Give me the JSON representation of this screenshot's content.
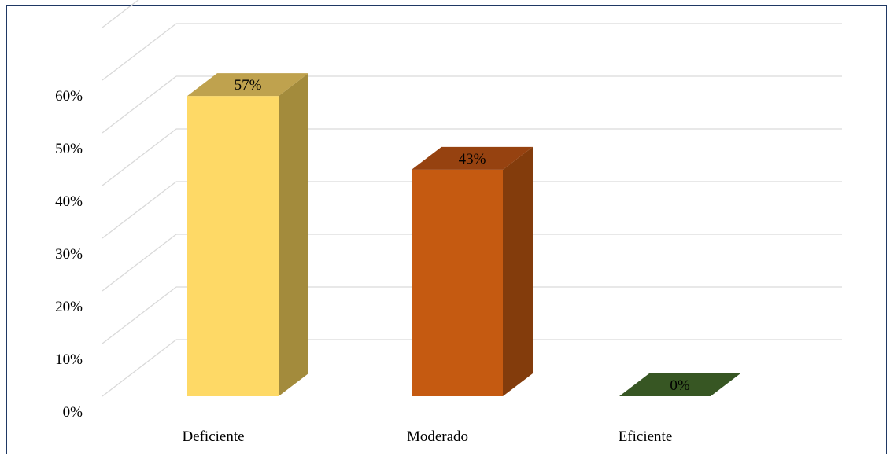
{
  "chart_data": {
    "type": "bar",
    "style": "3d-column",
    "categories": [
      "Deficiente",
      "Moderado",
      "Eficiente"
    ],
    "values": [
      57,
      43,
      0
    ],
    "data_labels": [
      "57%",
      "43%",
      "0%"
    ],
    "colors": [
      "#fed966",
      "#c55a11",
      "#375623"
    ],
    "side_colors": [
      "#a38b3c",
      "#833c0c",
      "#375623"
    ],
    "top_colors": [
      "#bfa24e",
      "#964210",
      "#4b6f2e"
    ],
    "yticks": [
      "0%",
      "10%",
      "20%",
      "30%",
      "40%",
      "50%",
      "60%"
    ],
    "ylim": [
      0,
      70
    ],
    "grid": true,
    "legend": "none",
    "title": "",
    "xlabel": "",
    "ylabel": ""
  }
}
